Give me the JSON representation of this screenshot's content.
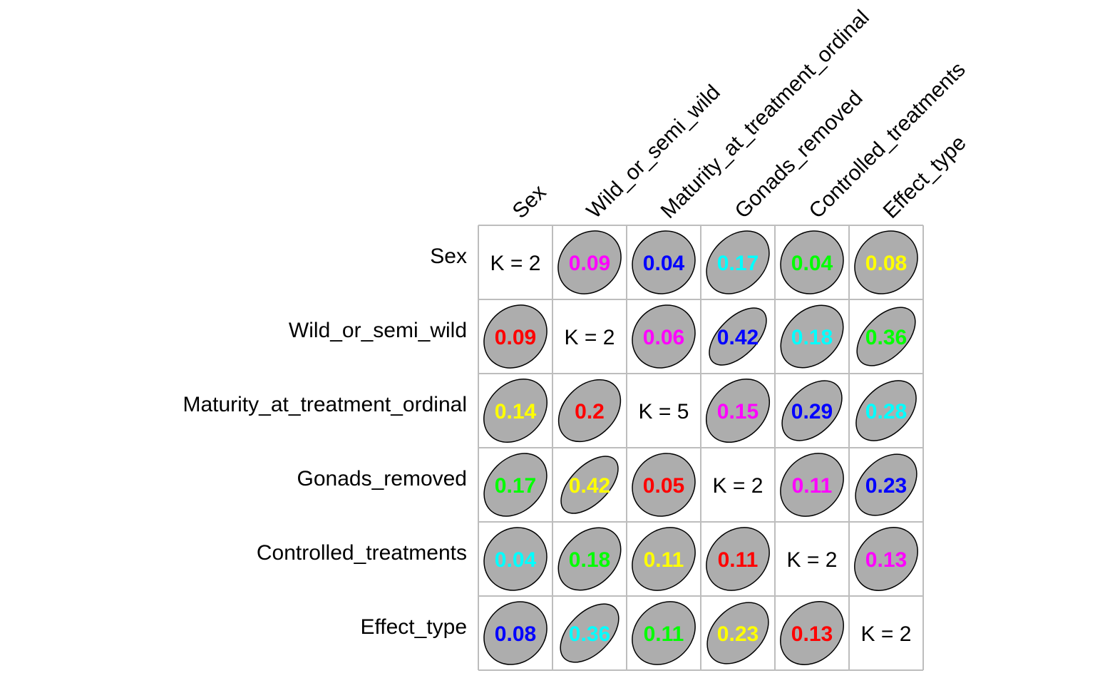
{
  "chart_data": {
    "type": "heatmap",
    "variables": [
      "Sex",
      "Wild_or_semi_wild",
      "Maturity_at_treatment_ordinal",
      "Gonads_removed",
      "Controlled_treatments",
      "Effect_type"
    ],
    "diagonal": [
      "K = 2",
      "K = 2",
      "K = 5",
      "K = 2",
      "K = 2",
      "K = 2"
    ],
    "values": [
      [
        null,
        0.09,
        0.04,
        0.17,
        0.04,
        0.08
      ],
      [
        0.09,
        null,
        0.06,
        0.42,
        0.18,
        0.36
      ],
      [
        0.14,
        0.2,
        null,
        0.15,
        0.29,
        0.28
      ],
      [
        0.17,
        0.42,
        0.05,
        null,
        0.11,
        0.23
      ],
      [
        0.04,
        0.18,
        0.11,
        0.11,
        null,
        0.13
      ],
      [
        0.08,
        0.36,
        0.11,
        0.23,
        0.13,
        null
      ]
    ],
    "value_colors": [
      [
        null,
        "#ff00ff",
        "#0000ff",
        "#00ffff",
        "#00ff00",
        "#ffff00"
      ],
      [
        "#ff0000",
        null,
        "#ff00ff",
        "#0000ff",
        "#00ffff",
        "#00ff00"
      ],
      [
        "#ffff00",
        "#ff0000",
        null,
        "#ff00ff",
        "#0000ff",
        "#00ffff"
      ],
      [
        "#00ff00",
        "#ffff00",
        "#ff0000",
        null,
        "#ff00ff",
        "#0000ff"
      ],
      [
        "#00ffff",
        "#00ff00",
        "#ffff00",
        "#ff0000",
        null,
        "#ff00ff"
      ],
      [
        "#0000ff",
        "#00ffff",
        "#00ff00",
        "#ffff00",
        "#ff0000",
        null
      ]
    ],
    "ellipse_fill": "#adadad",
    "grid_color": "#bdbdbd"
  }
}
